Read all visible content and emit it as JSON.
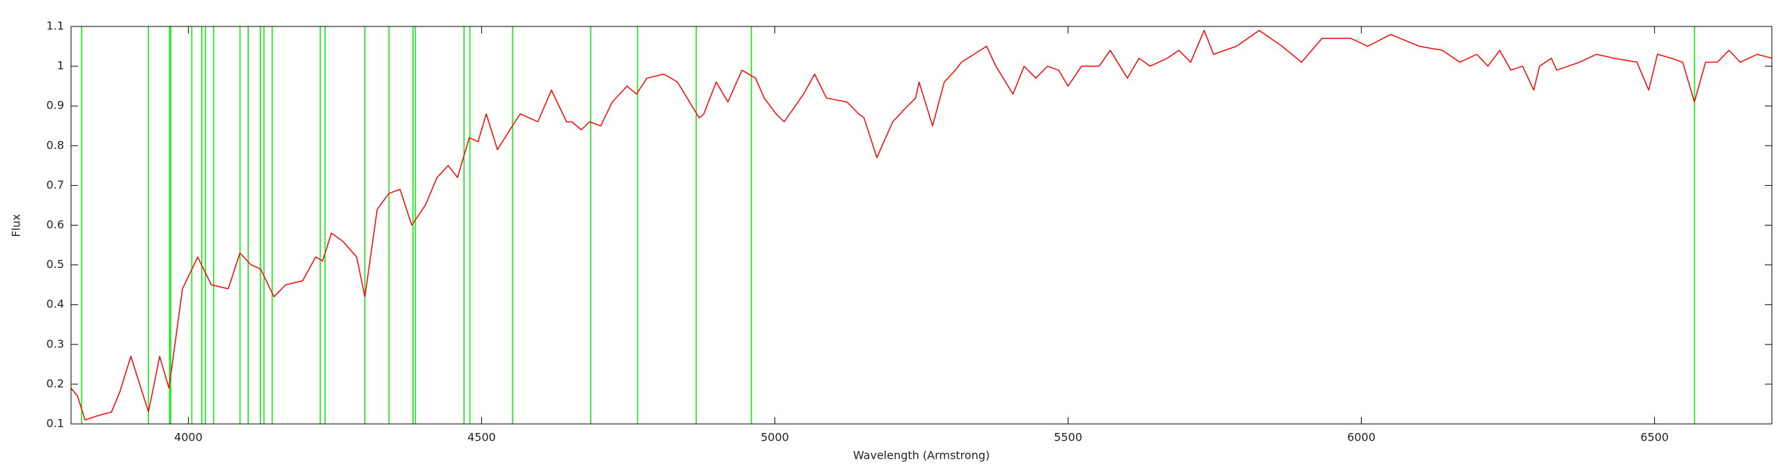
{
  "chart_data": {
    "type": "line",
    "xlabel": "Wavelength (Armstrong)",
    "ylabel": "Flux",
    "xlim": [
      3800,
      6700
    ],
    "ylim": [
      0.1,
      1.1
    ],
    "xticks": [
      4000,
      4500,
      5000,
      5500,
      6000,
      6500
    ],
    "yticks": [
      0.1,
      0.2,
      0.3,
      0.4,
      0.5,
      0.6,
      0.7,
      0.8,
      0.9,
      1,
      1.1
    ],
    "color": "#ff0000",
    "x": [
      3800,
      3811,
      3824,
      3844,
      3869,
      3883,
      3902,
      3932,
      3951,
      3967,
      3990,
      4016,
      4039,
      4068,
      4088,
      4107,
      4123,
      4146,
      4166,
      4195,
      4217,
      4229,
      4244,
      4263,
      4287,
      4301,
      4322,
      4342,
      4361,
      4381,
      4404,
      4424,
      4443,
      4459,
      4479,
      4494,
      4508,
      4527,
      4557,
      4566,
      4596,
      4619,
      4645,
      4654,
      4670,
      4684,
      4703,
      4723,
      4748,
      4764,
      4782,
      4811,
      4834,
      4871,
      4879,
      4900,
      4920,
      4944,
      4967,
      4982,
      5002,
      5016,
      5049,
      5068,
      5088,
      5123,
      5143,
      5152,
      5174,
      5201,
      5220,
      5240,
      5246,
      5269,
      5289,
      5308,
      5318,
      5361,
      5377,
      5406,
      5425,
      5445,
      5465,
      5484,
      5500,
      5523,
      5553,
      5572,
      5601,
      5621,
      5640,
      5669,
      5689,
      5709,
      5732,
      5748,
      5787,
      5826,
      5865,
      5898,
      5933,
      5982,
      6011,
      6050,
      6099,
      6138,
      6168,
      6197,
      6216,
      6236,
      6255,
      6275,
      6294,
      6304,
      6324,
      6333,
      6353,
      6372,
      6401,
      6431,
      6470,
      6490,
      6505,
      6529,
      6548,
      6568,
      6587,
      6607,
      6627,
      6646,
      6675,
      6700
    ],
    "values": [
      0.19,
      0.17,
      0.11,
      0.12,
      0.13,
      0.18,
      0.27,
      0.13,
      0.27,
      0.19,
      0.44,
      0.52,
      0.45,
      0.44,
      0.53,
      0.5,
      0.49,
      0.42,
      0.45,
      0.46,
      0.52,
      0.51,
      0.58,
      0.56,
      0.52,
      0.42,
      0.64,
      0.68,
      0.69,
      0.6,
      0.65,
      0.72,
      0.75,
      0.72,
      0.82,
      0.81,
      0.88,
      0.79,
      0.86,
      0.88,
      0.86,
      0.94,
      0.86,
      0.86,
      0.84,
      0.86,
      0.85,
      0.91,
      0.95,
      0.93,
      0.97,
      0.98,
      0.96,
      0.87,
      0.88,
      0.96,
      0.91,
      0.99,
      0.97,
      0.92,
      0.88,
      0.86,
      0.93,
      0.98,
      0.92,
      0.91,
      0.88,
      0.87,
      0.77,
      0.86,
      0.89,
      0.92,
      0.96,
      0.85,
      0.96,
      0.99,
      1.01,
      1.05,
      1.0,
      0.93,
      1.0,
      0.97,
      1.0,
      0.99,
      0.95,
      1.0,
      1.0,
      1.04,
      0.97,
      1.02,
      1.0,
      1.02,
      1.04,
      1.01,
      1.09,
      1.03,
      1.05,
      1.09,
      1.05,
      1.01,
      1.07,
      1.07,
      1.05,
      1.08,
      1.05,
      1.04,
      1.01,
      1.03,
      1.0,
      1.04,
      0.99,
      1.0,
      0.94,
      1.0,
      1.02,
      0.99,
      1.0,
      1.01,
      1.03,
      1.02,
      1.01,
      0.94,
      1.03,
      1.02,
      1.01,
      0.91,
      1.01,
      1.01,
      1.04,
      1.01,
      1.03,
      1.02
    ],
    "vlines": [
      3818,
      3932,
      3968,
      3970,
      4006,
      4023,
      4029,
      4043,
      4088,
      4102,
      4123,
      4129,
      4143,
      4225,
      4233,
      4301,
      4342,
      4383,
      4387,
      4470,
      4480,
      4553,
      4686,
      4766,
      4866,
      4960,
      6568
    ],
    "vline_color": "#00ee00"
  }
}
